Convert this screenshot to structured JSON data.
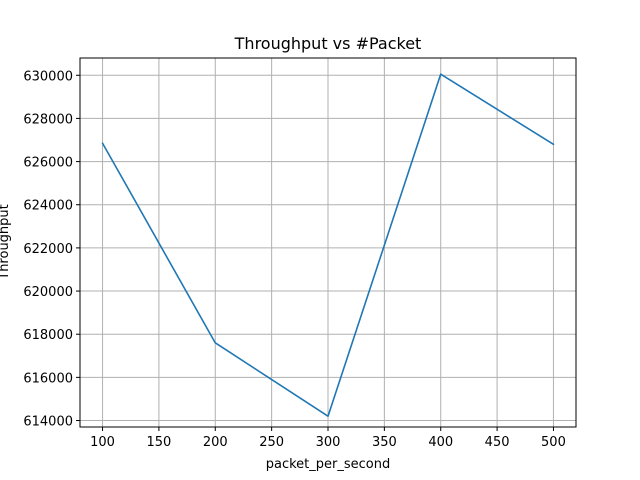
{
  "chart_data": {
    "type": "line",
    "title": "Throughput vs #Packet",
    "xlabel": "packet_per_second",
    "ylabel": "Throughput",
    "grid": true,
    "xlim": [
      80,
      520
    ],
    "ylim": [
      613700,
      630800
    ],
    "x_ticks": [
      100,
      150,
      200,
      250,
      300,
      350,
      400,
      450,
      500
    ],
    "y_ticks": [
      614000,
      616000,
      618000,
      620000,
      622000,
      624000,
      626000,
      628000,
      630000
    ],
    "series": [
      {
        "x": [
          100,
          200,
          300,
          400,
          500
        ],
        "values": [
          626850,
          617600,
          614200,
          630050,
          626800
        ],
        "color": "#1f77b4"
      }
    ]
  }
}
